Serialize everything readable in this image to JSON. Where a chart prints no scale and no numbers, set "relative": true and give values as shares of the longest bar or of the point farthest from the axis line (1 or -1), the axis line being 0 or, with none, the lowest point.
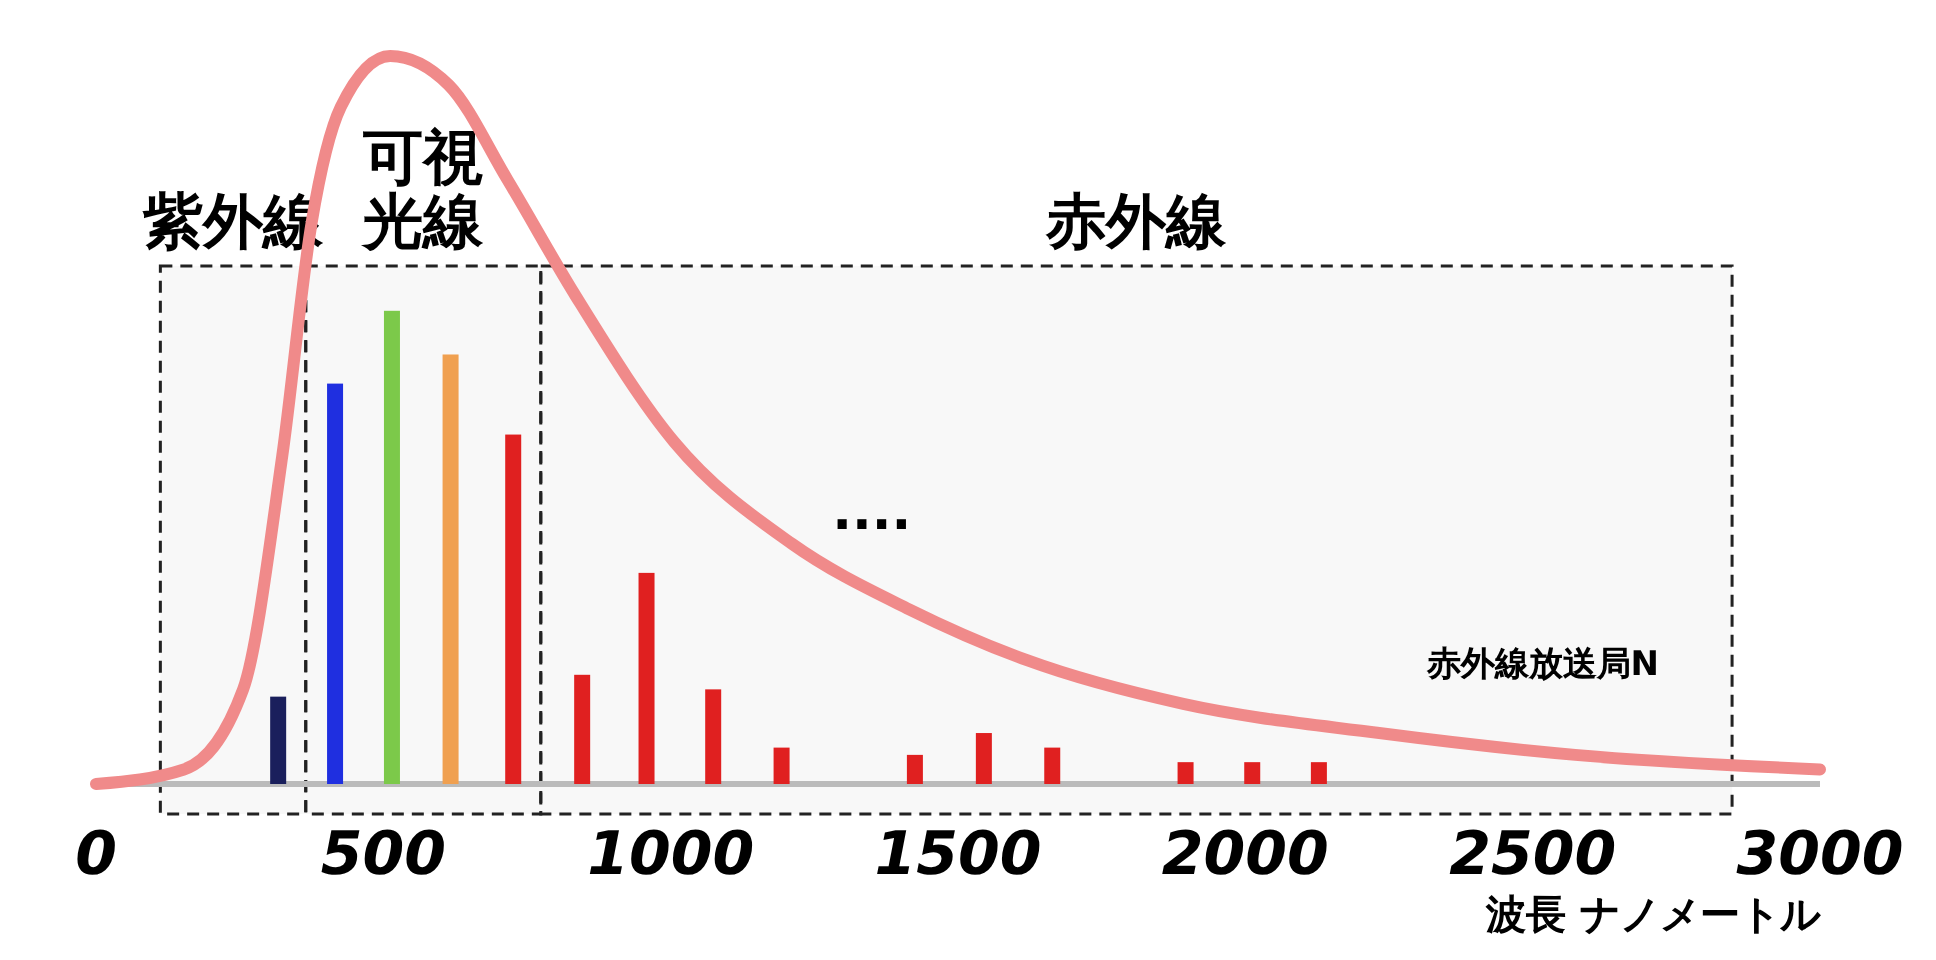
{
  "chart_data": {
    "type": "bar",
    "relative": true,
    "xlabel": "波長 ナノメートル",
    "xlim": [
      0,
      3000
    ],
    "xticks": [
      0,
      500,
      1000,
      1500,
      2000,
      2500,
      3000
    ],
    "grid": false,
    "series": [
      {
        "x": [
          317,
          416,
          515,
          617,
          726,
          846,
          958,
          1074,
          1193,
          1425,
          1545,
          1664,
          1896,
          2012,
          2128
        ],
        "values": [
          0.12,
          0.55,
          0.65,
          0.59,
          0.48,
          0.15,
          0.29,
          0.13,
          0.05,
          0.04,
          0.07,
          0.05,
          0.03,
          0.03,
          0.03
        ],
        "colors": [
          "#1a1f5c",
          "#1f2fe0",
          "#7cc94a",
          "#f0a050",
          "#e02020",
          "#e02020",
          "#e02020",
          "#e02020",
          "#e02020",
          "#e02020",
          "#e02020",
          "#e02020",
          "#e02020",
          "#e02020",
          "#e02020"
        ]
      },
      {
        "type": "line",
        "color": "#f08a8a",
        "x": [
          0,
          153,
          256,
          324,
          375,
          426,
          512,
          614,
          716,
          835,
          1006,
          1211,
          1415,
          1620,
          1892,
          2233,
          2574,
          3000
        ],
        "values": [
          0,
          0.02,
          0.13,
          0.45,
          0.77,
          0.93,
          1,
          0.96,
          0.83,
          0.67,
          0.47,
          0.33,
          0.24,
          0.17,
          0.11,
          0.07,
          0.04,
          0.02
        ]
      }
    ],
    "bands": [
      {
        "axis": "x",
        "from": 112,
        "to": 365,
        "label": "紫外線"
      },
      {
        "axis": "x",
        "from": 365,
        "to": 774,
        "label": "可視光線"
      },
      {
        "axis": "x",
        "from": 774,
        "to": 2847,
        "label": "赤外線"
      }
    ],
    "annotations": [
      "....",
      "赤外線放送局N"
    ]
  }
}
